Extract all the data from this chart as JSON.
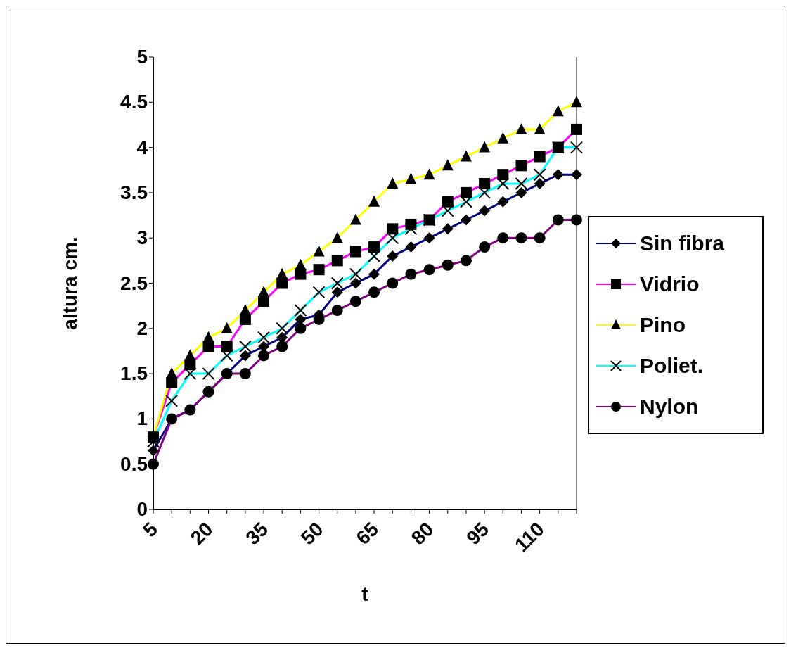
{
  "chart_data": {
    "type": "line",
    "xlabel": "t",
    "ylabel": "altura cm.",
    "categories": [
      "5",
      null,
      null,
      "20",
      null,
      null,
      "35",
      null,
      null,
      "50",
      null,
      null,
      "65",
      null,
      null,
      "80",
      null,
      null,
      "95",
      null,
      null,
      "110",
      null,
      null
    ],
    "series": [
      {
        "name": "Sin fibra",
        "color": "#000080",
        "marker": "diamond",
        "values": [
          0.65,
          1.0,
          1.1,
          1.3,
          1.5,
          1.7,
          1.8,
          1.9,
          2.1,
          2.15,
          2.4,
          2.5,
          2.6,
          2.8,
          2.9,
          3.0,
          3.1,
          3.2,
          3.3,
          3.4,
          3.5,
          3.6,
          3.7,
          3.7
        ]
      },
      {
        "name": "Vidrio",
        "color": "#ff00ff",
        "marker": "square",
        "values": [
          0.8,
          1.4,
          1.6,
          1.8,
          1.8,
          2.1,
          2.3,
          2.5,
          2.6,
          2.65,
          2.75,
          2.85,
          2.9,
          3.1,
          3.15,
          3.2,
          3.4,
          3.5,
          3.6,
          3.7,
          3.8,
          3.9,
          4.0,
          4.2
        ]
      },
      {
        "name": "Pino",
        "color": "#ffff00",
        "marker": "triangle",
        "values": [
          0.8,
          1.5,
          1.7,
          1.9,
          2.0,
          2.2,
          2.4,
          2.6,
          2.7,
          2.85,
          3.0,
          3.2,
          3.4,
          3.6,
          3.65,
          3.7,
          3.8,
          3.9,
          4.0,
          4.1,
          4.2,
          4.2,
          4.4,
          4.5
        ]
      },
      {
        "name": "Poliet.",
        "color": "#00ffff",
        "marker": "cross",
        "values": [
          0.75,
          1.2,
          1.5,
          1.5,
          1.7,
          1.8,
          1.9,
          2.0,
          2.2,
          2.4,
          2.5,
          2.6,
          2.8,
          3.0,
          3.1,
          3.2,
          3.3,
          3.4,
          3.5,
          3.6,
          3.6,
          3.7,
          4.0,
          4.0
        ]
      },
      {
        "name": "Nylon",
        "color": "#800080",
        "marker": "circle",
        "values": [
          0.5,
          1.0,
          1.1,
          1.3,
          1.5,
          1.5,
          1.7,
          1.8,
          2.0,
          2.1,
          2.2,
          2.3,
          2.4,
          2.5,
          2.6,
          2.65,
          2.7,
          2.75,
          2.9,
          3.0,
          3.0,
          3.0,
          3.2,
          3.2
        ]
      }
    ],
    "ylim": [
      0,
      5
    ],
    "yticks": [
      0,
      0.5,
      1,
      1.5,
      2,
      2.5,
      3,
      3.5,
      4,
      4.5,
      5
    ],
    "grid": false,
    "legend": "right",
    "line_style": "solid"
  }
}
